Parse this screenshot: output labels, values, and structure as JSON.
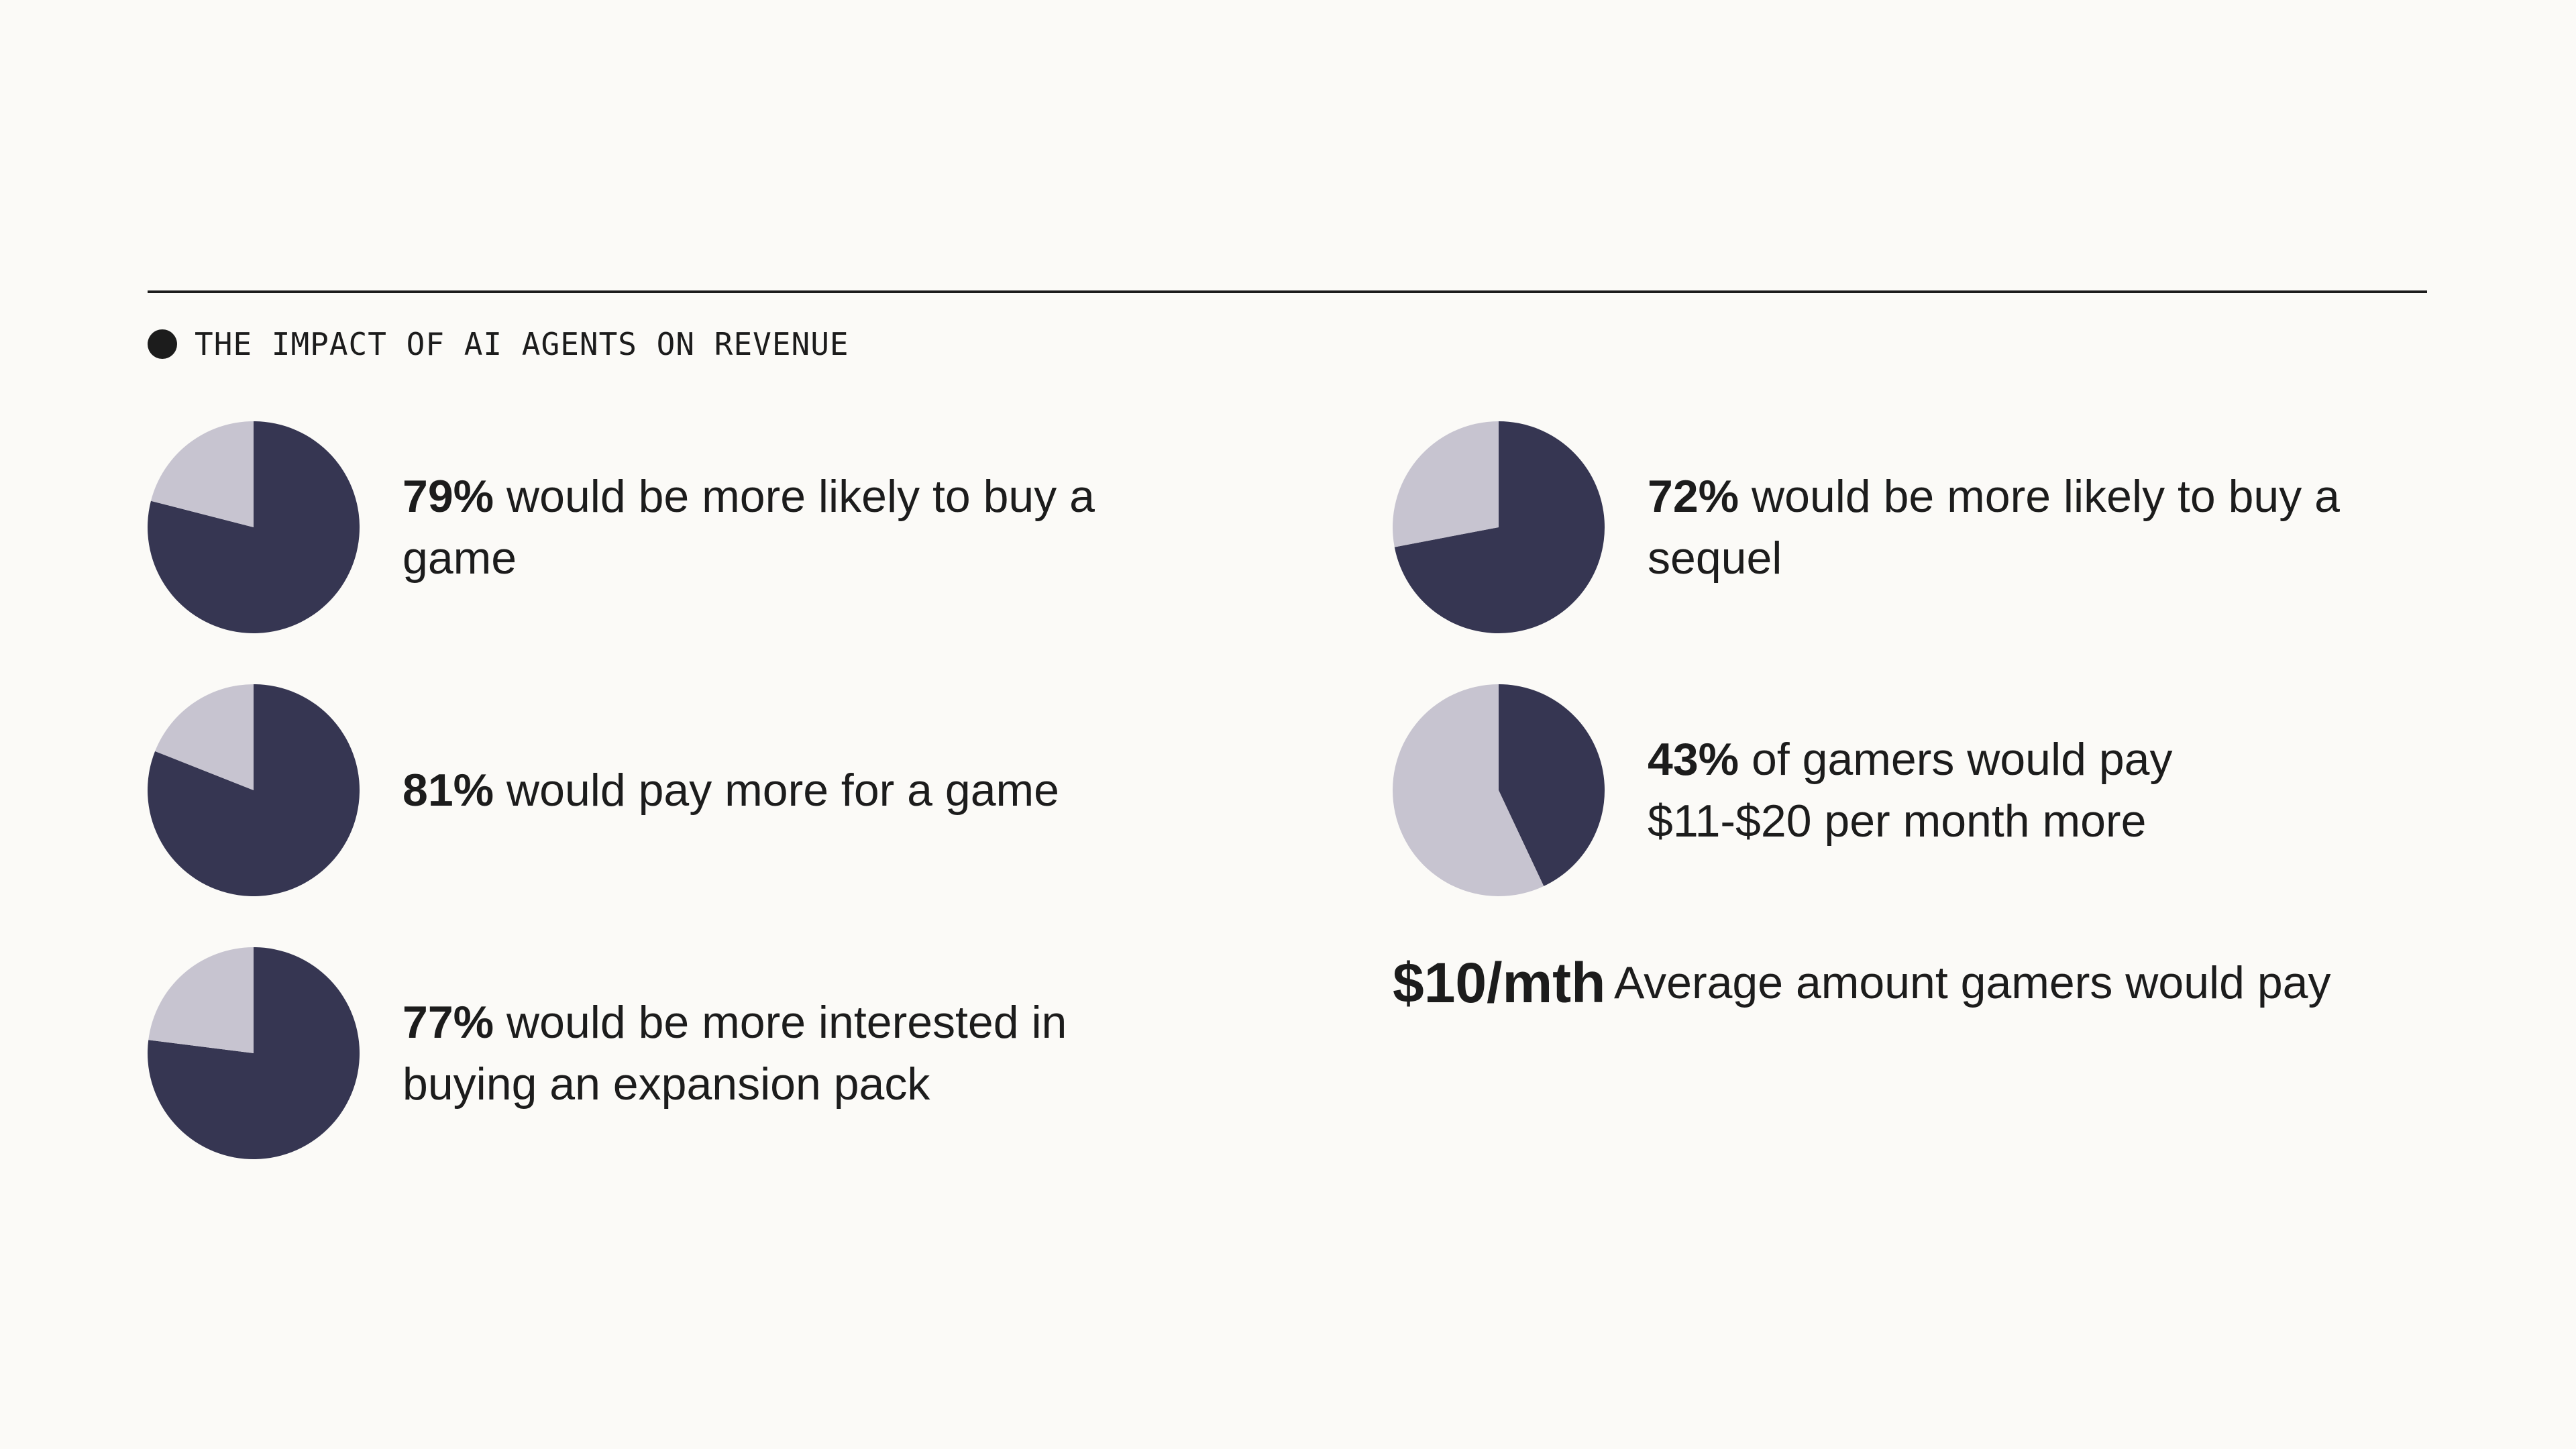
{
  "section": {
    "title": "THE IMPACT OF AI AGENTS ON REVENUE"
  },
  "colors": {
    "primary": "#363652",
    "secondary": "#c7c4d0",
    "text": "#1c1c1c",
    "background": "#fbfaf7"
  },
  "chart_data": [
    {
      "type": "pie",
      "values": [
        79,
        21
      ],
      "value_label": "79%",
      "text": "would be more likely to buy a game"
    },
    {
      "type": "pie",
      "values": [
        81,
        19
      ],
      "value_label": "81%",
      "text": "would pay more for a game"
    },
    {
      "type": "pie",
      "values": [
        77,
        23
      ],
      "value_label": "77%",
      "text": "would be more interested in buying an expansion pack"
    },
    {
      "type": "pie",
      "values": [
        72,
        28
      ],
      "value_label": "72%",
      "text": "would be more likely to buy a sequel"
    },
    {
      "type": "pie",
      "values": [
        43,
        57
      ],
      "value_label": "43%",
      "text": "of gamers would pay $11-$20 per month more"
    }
  ],
  "average": {
    "value": "$10/mth",
    "label": "Average amount gamers would pay"
  }
}
